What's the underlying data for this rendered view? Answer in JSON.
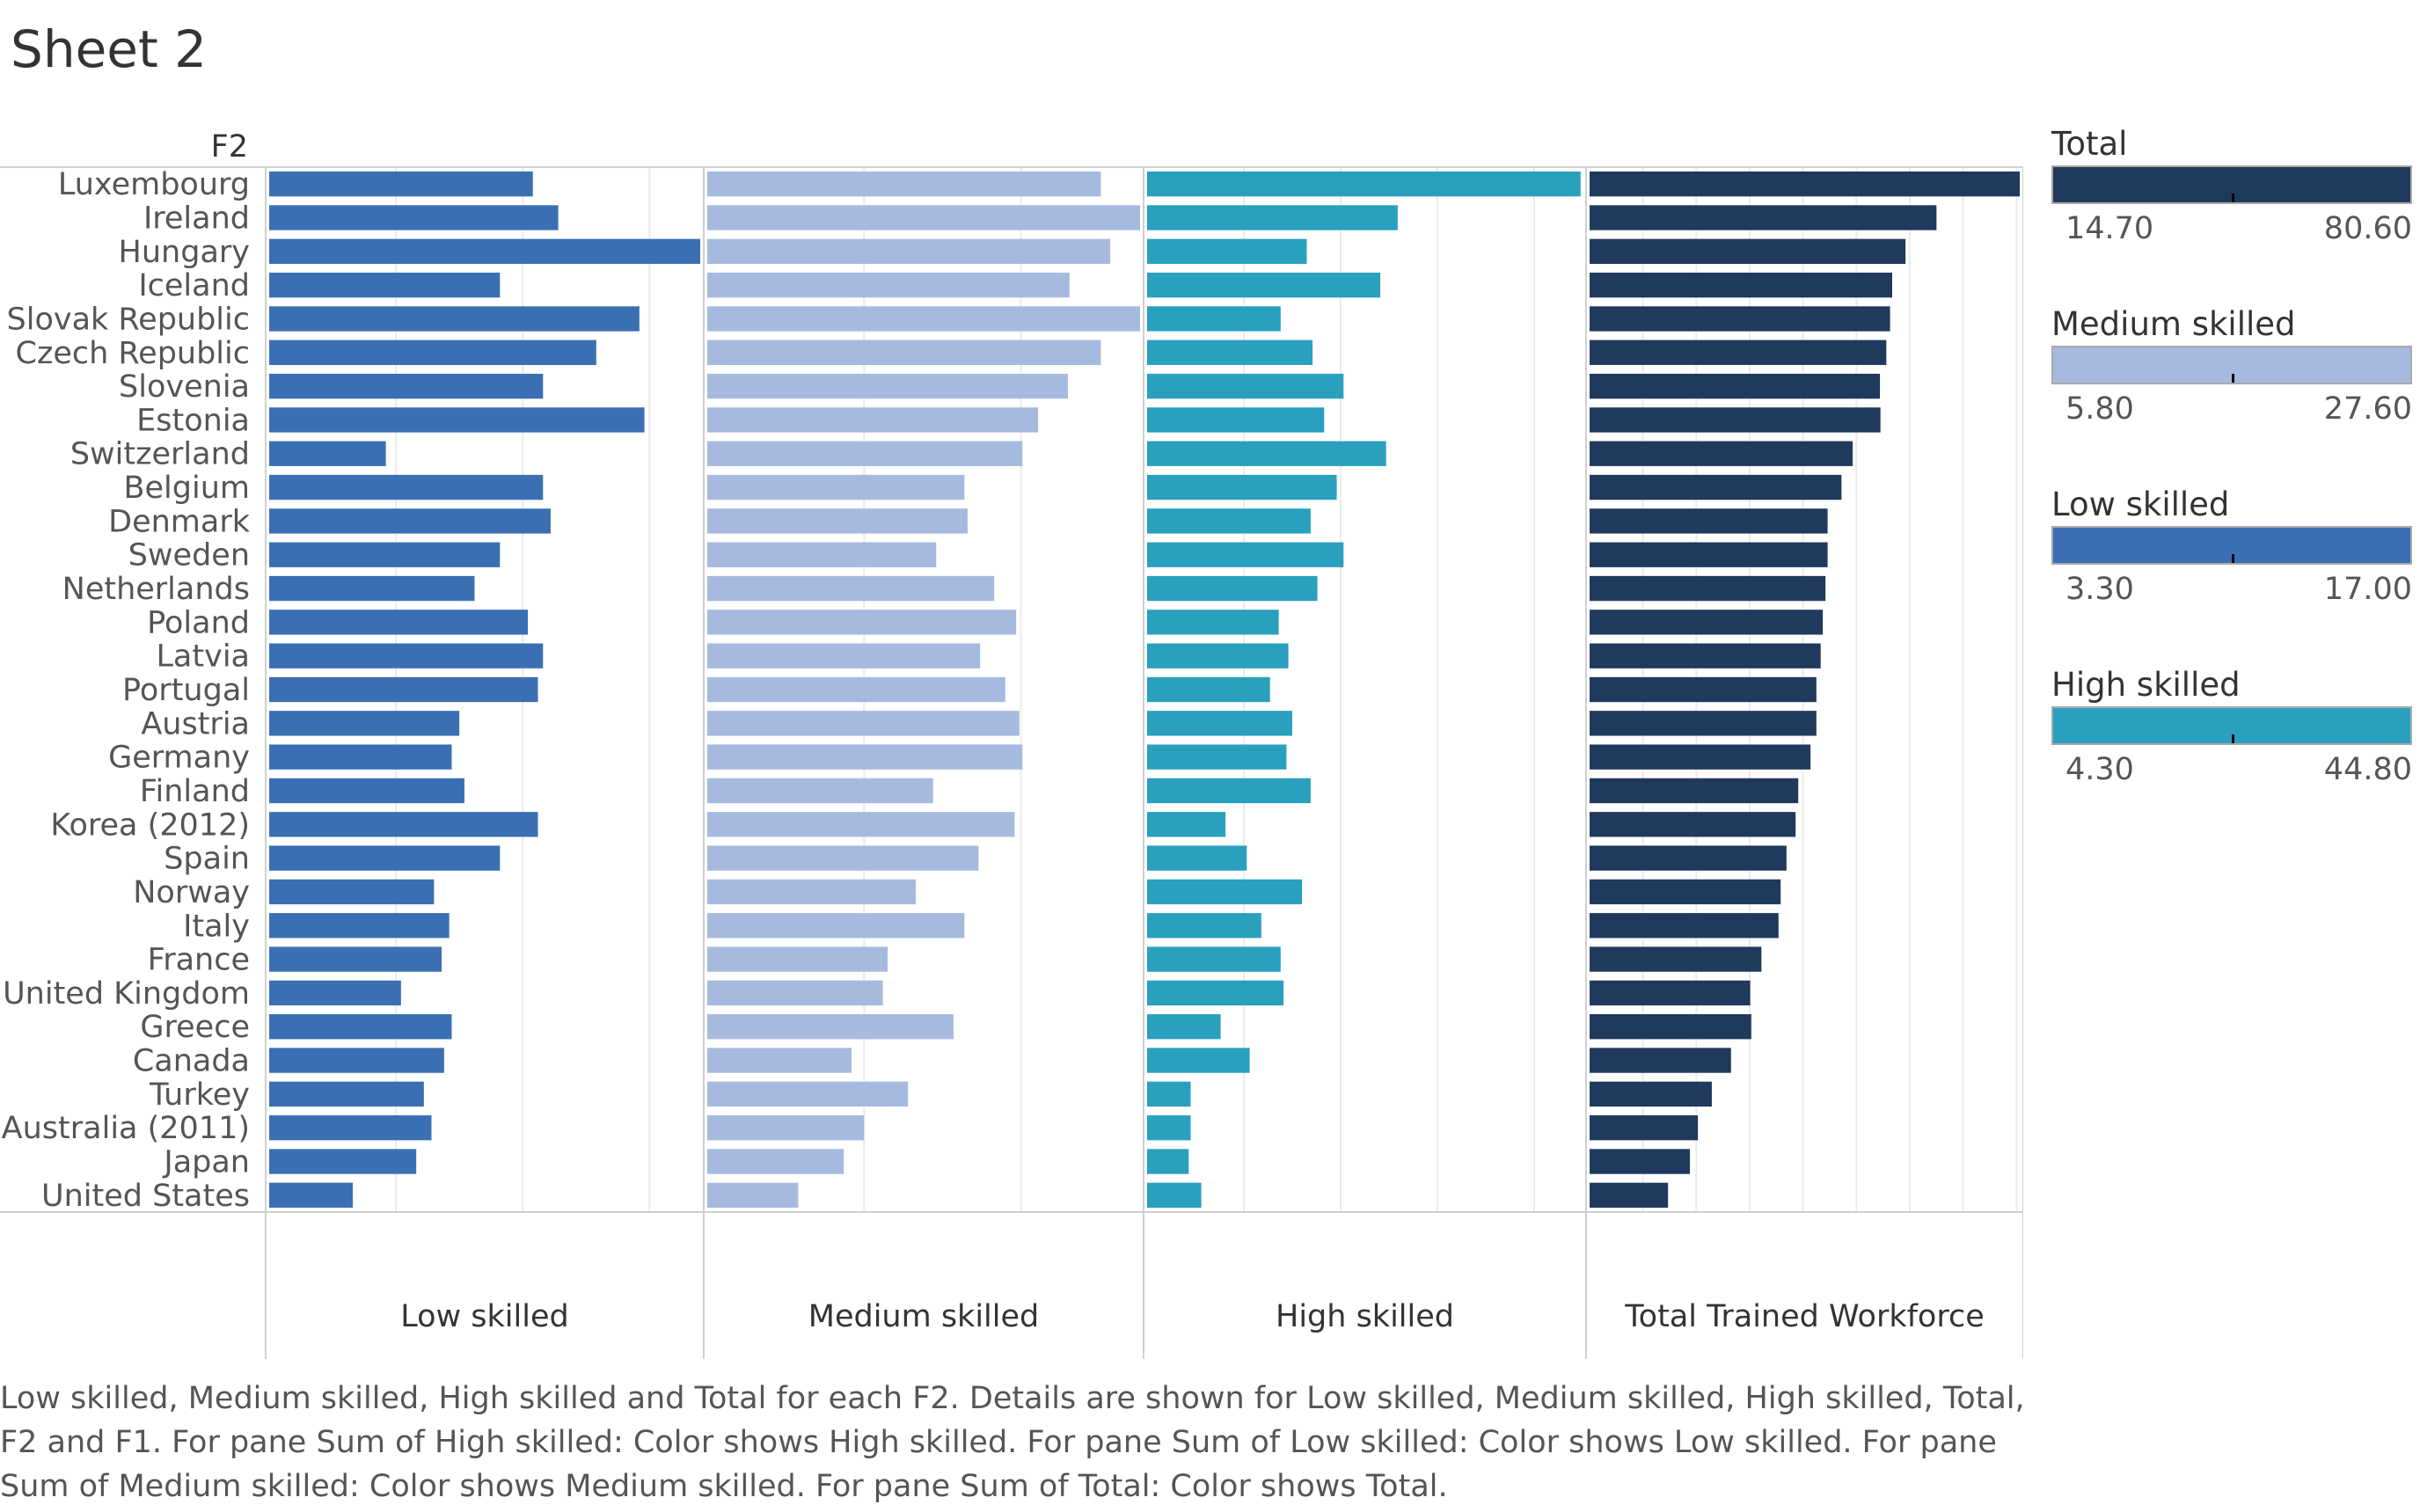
{
  "sheet_title": "Sheet 2",
  "row_header": "F2",
  "caption": "Low skilled, Medium skilled, High skilled and Total for each F2.  Details are shown for Low skilled, Medium skilled, High skilled, Total, F2 and F1.  For pane Sum of High skilled:  Color shows High skilled.  For pane Sum of Low skilled:  Color shows Low skilled.  For pane Sum of Medium skilled:  Color shows Medium skilled.  For pane Sum of Total:  Color shows Total.",
  "legends": [
    {
      "title": "Total",
      "min": "14.70",
      "max": "80.60",
      "color": "#1f3a5c"
    },
    {
      "title": "Medium skilled",
      "min": "5.80",
      "max": "27.60",
      "color": "#a6badf"
    },
    {
      "title": "Low skilled",
      "min": "3.30",
      "max": "17.00",
      "color": "#3a70b3"
    },
    {
      "title": "High skilled",
      "min": "4.30",
      "max": "44.80",
      "color": "#2aa0bf"
    }
  ],
  "chart_data": {
    "type": "bar",
    "orientation": "horizontal",
    "categories": [
      "Luxembourg",
      "Ireland",
      "Hungary",
      "Iceland",
      "Slovak Republic",
      "Czech Republic",
      "Slovenia",
      "Estonia",
      "Switzerland",
      "Belgium",
      "Denmark",
      "Sweden",
      "Netherlands",
      "Poland",
      "Latvia",
      "Portugal",
      "Austria",
      "Germany",
      "Finland",
      "Korea (2012)",
      "Spain",
      "Norway",
      "Italy",
      "France",
      "United Kingdom",
      "Greece",
      "Canada",
      "Turkey",
      "Australia (2011)",
      "Japan",
      "United States"
    ],
    "grid": true,
    "series": [
      {
        "name": "Low skilled",
        "color": "#3a70b3",
        "xlim": [
          0,
          17
        ],
        "values": [
          10.4,
          11.4,
          17.0,
          9.1,
          14.6,
          12.9,
          10.8,
          14.8,
          4.6,
          10.8,
          11.1,
          9.1,
          8.1,
          10.2,
          10.8,
          10.6,
          7.5,
          7.2,
          7.7,
          10.6,
          9.1,
          6.5,
          7.1,
          6.8,
          5.2,
          7.2,
          6.9,
          6.1,
          6.4,
          5.8,
          3.3
        ]
      },
      {
        "name": "Medium skilled",
        "color": "#a6badf",
        "xlim": [
          0,
          27.6
        ],
        "values": [
          25.1,
          27.6,
          25.7,
          23.1,
          27.6,
          25.1,
          23.0,
          21.1,
          20.1,
          16.4,
          16.6,
          14.6,
          18.3,
          19.7,
          17.4,
          19.0,
          19.9,
          20.1,
          14.4,
          19.6,
          17.3,
          13.3,
          16.4,
          11.5,
          11.2,
          15.7,
          9.2,
          12.8,
          10.0,
          8.7,
          5.8
        ]
      },
      {
        "name": "High skilled",
        "color": "#2aa0bf",
        "xlim": [
          0,
          45
        ],
        "values": [
          44.8,
          25.9,
          16.5,
          24.1,
          13.8,
          17.1,
          20.3,
          18.3,
          24.7,
          19.6,
          16.9,
          20.3,
          17.6,
          13.6,
          14.6,
          12.7,
          15.0,
          14.4,
          16.9,
          8.1,
          10.3,
          16.0,
          11.8,
          13.8,
          14.1,
          7.6,
          10.6,
          4.5,
          4.5,
          4.3,
          5.6
        ]
      },
      {
        "name": "Total Trained Workforce",
        "color": "#1f3a5c",
        "xlim": [
          0,
          80.6
        ],
        "values": [
          80.6,
          65.0,
          59.2,
          56.7,
          56.3,
          55.6,
          54.4,
          54.5,
          49.3,
          47.2,
          44.6,
          44.6,
          44.2,
          43.7,
          43.3,
          42.5,
          42.5,
          41.4,
          39.1,
          38.6,
          36.9,
          35.8,
          35.4,
          32.2,
          30.1,
          30.3,
          26.5,
          22.9,
          20.3,
          18.8,
          14.7
        ]
      }
    ]
  }
}
